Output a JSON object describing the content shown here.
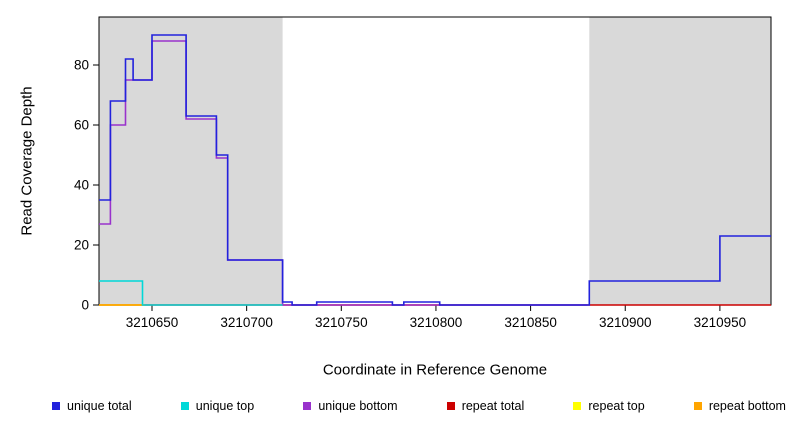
{
  "chart_data": {
    "type": "line",
    "step": true,
    "title": "",
    "xlabel": "Coordinate in Reference Genome",
    "ylabel": "Read Coverage Depth",
    "xlim": [
      3210622,
      3210977
    ],
    "ylim": [
      0,
      96
    ],
    "xticks": [
      3210650,
      3210700,
      3210750,
      3210800,
      3210850,
      3210900,
      3210950
    ],
    "yticks": [
      0,
      20,
      40,
      60,
      80
    ],
    "grid": false,
    "legend_position": "bottom",
    "plot_bg": "#ffffff",
    "box_color": "#000000",
    "shaded_regions": [
      {
        "name": "masked-left",
        "x0": 3210622,
        "x1": 3210719,
        "color": "#d9d9d9"
      },
      {
        "name": "masked-right",
        "x0": 3210881,
        "x1": 3210977,
        "color": "#d9d9d9"
      }
    ],
    "series": [
      {
        "name": "repeat total",
        "slug": "repeat-total",
        "color": "#cc0000",
        "steps": [
          [
            3210622,
            0
          ],
          [
            3210977,
            0
          ]
        ]
      },
      {
        "name": "repeat top",
        "slug": "repeat-top",
        "color": "#ffff00",
        "steps": [
          [
            3210622,
            0
          ],
          [
            3210646,
            0
          ]
        ]
      },
      {
        "name": "repeat bottom",
        "slug": "repeat-bottom",
        "color": "#ffa500",
        "steps": [
          [
            3210622,
            0
          ],
          [
            3210646,
            0
          ]
        ]
      },
      {
        "name": "unique bottom",
        "slug": "unique-bottom",
        "color": "#9932cc",
        "steps": [
          [
            3210622,
            27
          ],
          [
            3210628,
            60
          ],
          [
            3210636,
            75
          ],
          [
            3210650,
            88
          ],
          [
            3210668,
            62
          ],
          [
            3210684,
            49
          ],
          [
            3210690,
            15
          ],
          [
            3210719,
            0
          ],
          [
            3210880,
            0
          ]
        ]
      },
      {
        "name": "unique top",
        "slug": "unique-top",
        "color": "#00d8d8",
        "steps": [
          [
            3210622,
            8
          ],
          [
            3210645,
            0
          ],
          [
            3210719,
            0
          ]
        ]
      },
      {
        "name": "unique total",
        "slug": "unique-total",
        "color": "#2222dd",
        "steps": [
          [
            3210622,
            35
          ],
          [
            3210628,
            68
          ],
          [
            3210636,
            82
          ],
          [
            3210640,
            75
          ],
          [
            3210650,
            90
          ],
          [
            3210668,
            63
          ],
          [
            3210684,
            50
          ],
          [
            3210690,
            15
          ],
          [
            3210719,
            1
          ],
          [
            3210724,
            0
          ],
          [
            3210737,
            1
          ],
          [
            3210777,
            0
          ],
          [
            3210783,
            1
          ],
          [
            3210802,
            0
          ],
          [
            3210881,
            8
          ],
          [
            3210950,
            23
          ],
          [
            3210977,
            23
          ]
        ]
      }
    ]
  },
  "legend": {
    "items": [
      {
        "label": "unique total",
        "color": "#2222dd"
      },
      {
        "label": "unique top",
        "color": "#00d8d8"
      },
      {
        "label": "unique bottom",
        "color": "#9932cc"
      },
      {
        "label": "repeat total",
        "color": "#cc0000"
      },
      {
        "label": "repeat top",
        "color": "#ffff00"
      },
      {
        "label": "repeat bottom",
        "color": "#ffa500"
      }
    ]
  }
}
